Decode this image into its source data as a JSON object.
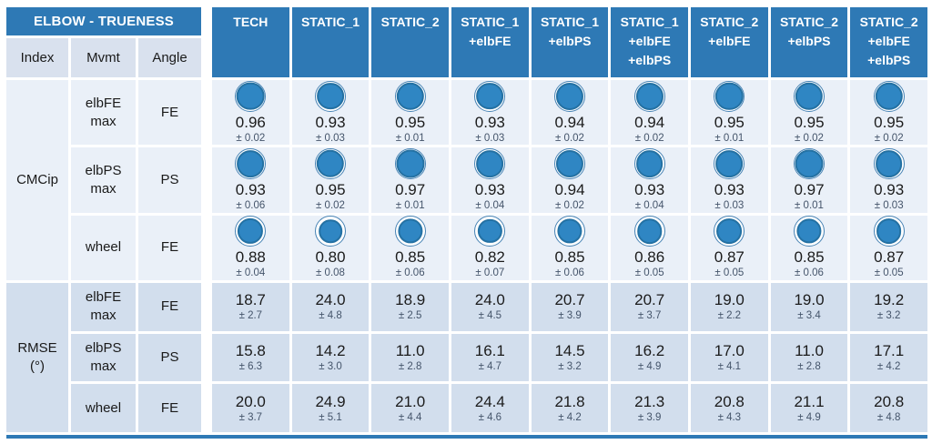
{
  "title": "ELBOW - TRUENESS",
  "subheaders": [
    "Index",
    "Mvmt",
    "Angle"
  ],
  "columns": [
    [
      "TECH"
    ],
    [
      "STATIC_1"
    ],
    [
      "STATIC_2"
    ],
    [
      "STATIC_1",
      "+elbFE"
    ],
    [
      "STATIC_1",
      "+elbPS"
    ],
    [
      "STATIC_1",
      "+elbFE",
      "+elbPS"
    ],
    [
      "STATIC_2",
      "+elbFE"
    ],
    [
      "STATIC_2",
      "+elbPS"
    ],
    [
      "STATIC_2",
      "+elbFE",
      "+elbPS"
    ]
  ],
  "groups": [
    {
      "index_lines": [
        "CMCip"
      ],
      "display": "ball",
      "rows": [
        {
          "mvmt_lines": [
            "elbFE",
            "max"
          ],
          "angle": "FE",
          "cells": [
            {
              "value": "0.96",
              "sd": "± 0.02"
            },
            {
              "value": "0.93",
              "sd": "± 0.03"
            },
            {
              "value": "0.95",
              "sd": "± 0.01"
            },
            {
              "value": "0.93",
              "sd": "± 0.03"
            },
            {
              "value": "0.94",
              "sd": "± 0.02"
            },
            {
              "value": "0.94",
              "sd": "± 0.02"
            },
            {
              "value": "0.95",
              "sd": "± 0.01"
            },
            {
              "value": "0.95",
              "sd": "± 0.02"
            },
            {
              "value": "0.95",
              "sd": "± 0.02"
            }
          ]
        },
        {
          "mvmt_lines": [
            "elbPS",
            "max"
          ],
          "angle": "PS",
          "cells": [
            {
              "value": "0.93",
              "sd": "± 0.06"
            },
            {
              "value": "0.95",
              "sd": "± 0.02"
            },
            {
              "value": "0.97",
              "sd": "± 0.01"
            },
            {
              "value": "0.93",
              "sd": "± 0.04"
            },
            {
              "value": "0.94",
              "sd": "± 0.02"
            },
            {
              "value": "0.93",
              "sd": "± 0.04"
            },
            {
              "value": "0.93",
              "sd": "± 0.03"
            },
            {
              "value": "0.97",
              "sd": "± 0.01"
            },
            {
              "value": "0.93",
              "sd": "± 0.03"
            }
          ]
        },
        {
          "mvmt_lines": [
            "wheel"
          ],
          "angle": "FE",
          "cells": [
            {
              "value": "0.88",
              "sd": "± 0.04"
            },
            {
              "value": "0.80",
              "sd": "± 0.08"
            },
            {
              "value": "0.85",
              "sd": "± 0.06"
            },
            {
              "value": "0.82",
              "sd": "± 0.07"
            },
            {
              "value": "0.85",
              "sd": "± 0.06"
            },
            {
              "value": "0.86",
              "sd": "± 0.05"
            },
            {
              "value": "0.87",
              "sd": "± 0.05"
            },
            {
              "value": "0.85",
              "sd": "± 0.06"
            },
            {
              "value": "0.87",
              "sd": "± 0.05"
            }
          ]
        }
      ]
    },
    {
      "index_lines": [
        "RMSE",
        "(°)"
      ],
      "display": "number",
      "rows": [
        {
          "mvmt_lines": [
            "elbFE",
            "max"
          ],
          "angle": "FE",
          "cells": [
            {
              "value": "18.7",
              "sd": "± 2.7"
            },
            {
              "value": "24.0",
              "sd": "± 4.8"
            },
            {
              "value": "18.9",
              "sd": "± 2.5"
            },
            {
              "value": "24.0",
              "sd": "± 4.5"
            },
            {
              "value": "20.7",
              "sd": "± 3.9"
            },
            {
              "value": "20.7",
              "sd": "± 3.7"
            },
            {
              "value": "19.0",
              "sd": "± 2.2"
            },
            {
              "value": "19.0",
              "sd": "± 3.4"
            },
            {
              "value": "19.2",
              "sd": "± 3.2"
            }
          ]
        },
        {
          "mvmt_lines": [
            "elbPS",
            "max"
          ],
          "angle": "PS",
          "cells": [
            {
              "value": "15.8",
              "sd": "± 6.3"
            },
            {
              "value": "14.2",
              "sd": "± 3.0"
            },
            {
              "value": "11.0",
              "sd": "± 2.8"
            },
            {
              "value": "16.1",
              "sd": "± 4.7"
            },
            {
              "value": "14.5",
              "sd": "± 3.2"
            },
            {
              "value": "16.2",
              "sd": "± 4.9"
            },
            {
              "value": "17.0",
              "sd": "± 4.1"
            },
            {
              "value": "11.0",
              "sd": "± 2.8"
            },
            {
              "value": "17.1",
              "sd": "± 4.2"
            }
          ]
        },
        {
          "mvmt_lines": [
            "wheel"
          ],
          "angle": "FE",
          "cells": [
            {
              "value": "20.0",
              "sd": "± 3.7"
            },
            {
              "value": "24.9",
              "sd": "± 5.1"
            },
            {
              "value": "21.0",
              "sd": "± 4.4"
            },
            {
              "value": "24.4",
              "sd": "± 4.6"
            },
            {
              "value": "21.8",
              "sd": "± 4.2"
            },
            {
              "value": "21.3",
              "sd": "± 3.9"
            },
            {
              "value": "20.8",
              "sd": "± 4.3"
            },
            {
              "value": "21.1",
              "sd": "± 4.9"
            },
            {
              "value": "20.8",
              "sd": "± 4.8"
            }
          ]
        }
      ]
    }
  ],
  "colors": {
    "header_blue": "#2E79B5",
    "header_text": "#FFFFFF",
    "subheader_bg": "#D9E1EE",
    "light_row_bg": "#EAF0F8",
    "dark_row_bg": "#D2DEED",
    "ball_fill": "#2F86C3",
    "ball_rim": "#2471A3",
    "ball_ring": "#4783B4",
    "value_text": "#1B1B1B",
    "sd_text": "#44546A",
    "label_text": "#1A1A1A"
  }
}
